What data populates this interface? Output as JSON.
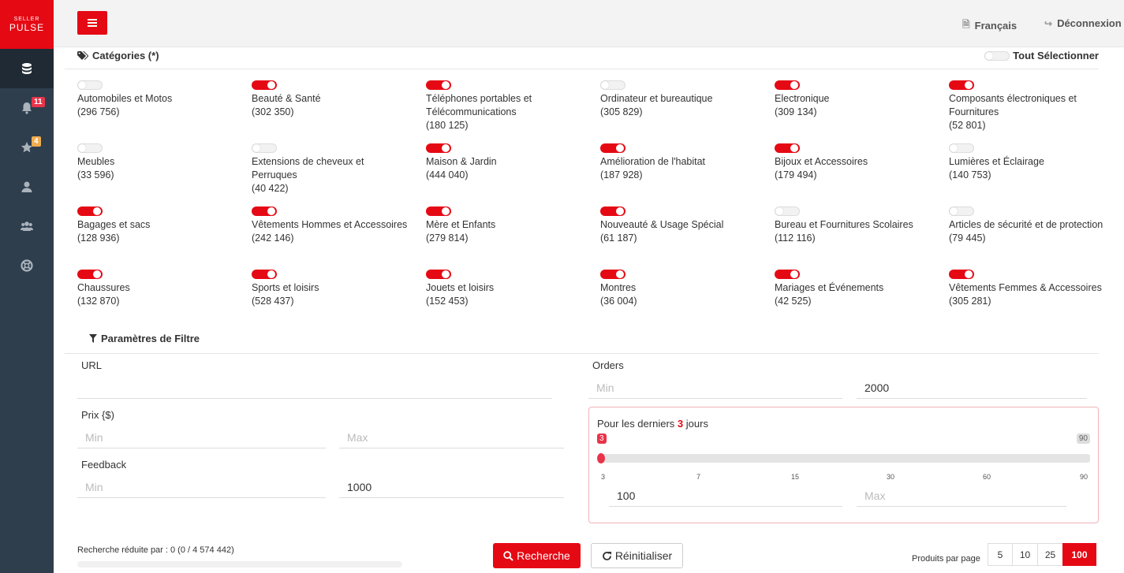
{
  "logo": {
    "line1": "SELLER",
    "line2": "PULSE"
  },
  "sidebar": {
    "notifications_badge": "11",
    "favorites_badge": "4"
  },
  "topbar": {
    "language": "Français",
    "logout": "Déconnexion"
  },
  "categories": {
    "title": "Catégories (*)",
    "select_all": "Tout Sélectionner",
    "items": [
      {
        "name": "Automobiles et Motos",
        "count": "(296 756)",
        "on": false
      },
      {
        "name": "Beauté & Santé",
        "count": "(302 350)",
        "on": true
      },
      {
        "name": "Téléphones portables et Télécommunications",
        "count": "(180 125)",
        "on": true
      },
      {
        "name": "Ordinateur et bureautique",
        "count": "(305 829)",
        "on": false
      },
      {
        "name": "Electronique",
        "count": "(309 134)",
        "on": true
      },
      {
        "name": "Composants électroniques et Fournitures",
        "count": "(52 801)",
        "on": true
      },
      {
        "name": "Meubles",
        "count": "(33 596)",
        "on": false
      },
      {
        "name": "Extensions de cheveux et Perruques",
        "count": "(40 422)",
        "on": false
      },
      {
        "name": "Maison & Jardin",
        "count": "(444 040)",
        "on": true
      },
      {
        "name": "Amélioration de l'habitat",
        "count": "(187 928)",
        "on": true
      },
      {
        "name": "Bijoux et Accessoires",
        "count": "(179 494)",
        "on": true
      },
      {
        "name": "Lumières et Éclairage",
        "count": "(140 753)",
        "on": false
      },
      {
        "name": "Bagages et sacs",
        "count": "(128 936)",
        "on": true
      },
      {
        "name": "Vêtements Hommes et Accessoires",
        "count": "(242 146)",
        "on": true
      },
      {
        "name": "Mère et Enfants",
        "count": "(279 814)",
        "on": true
      },
      {
        "name": "Nouveauté & Usage Spécial",
        "count": "(61 187)",
        "on": true
      },
      {
        "name": "Bureau et Fournitures Scolaires",
        "count": "(112 116)",
        "on": false
      },
      {
        "name": "Articles de sécurité et de protection",
        "count": "(79 445)",
        "on": false
      },
      {
        "name": "Chaussures",
        "count": "(132 870)",
        "on": true
      },
      {
        "name": "Sports et loisirs",
        "count": "(528 437)",
        "on": true
      },
      {
        "name": "Jouets et loisirs",
        "count": "(152 453)",
        "on": true
      },
      {
        "name": "Montres",
        "count": "(36 004)",
        "on": true
      },
      {
        "name": "Mariages et Événements",
        "count": "(42 525)",
        "on": true
      },
      {
        "name": "Vêtements Femmes & Accessoires",
        "count": "(305 281)",
        "on": true
      }
    ]
  },
  "filters": {
    "title": "Paramètres de Filtre",
    "url_label": "URL",
    "url_value": "",
    "price_label": "Prix {$)",
    "price_min_placeholder": "Min",
    "price_max_placeholder": "Max",
    "feedback_label": "Feedback",
    "feedback_min_placeholder": "Min",
    "feedback_max_value": "1000",
    "orders_label": "Orders",
    "orders_min_placeholder": "Min",
    "orders_max_value": "2000",
    "days": {
      "prefix": "Pour les derniers",
      "value": "3",
      "suffix": "jours",
      "slider_value": "3",
      "slider_max": "90",
      "ticks": [
        "3",
        "7",
        "15",
        "30",
        "60",
        "90"
      ],
      "min_value": "100",
      "max_placeholder": "Max"
    }
  },
  "actions": {
    "search": "Recherche",
    "reset": "Réinitialiser",
    "reduced": "Recherche réduite par : 0 (0 / 4 574 442)",
    "per_page_label": "Produits par page",
    "per_page_options": [
      "5",
      "10",
      "25",
      "100"
    ],
    "per_page_selected": "100"
  },
  "colors": {
    "accent": "#e50914",
    "sidebar": "#2f3e4d"
  }
}
